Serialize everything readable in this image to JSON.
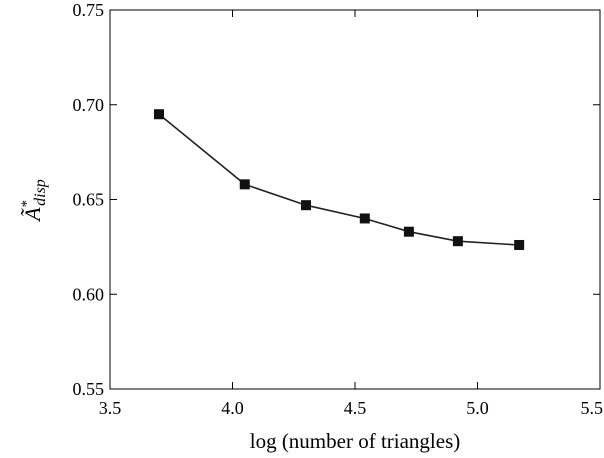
{
  "chart_data": {
    "type": "line",
    "title": "",
    "xlabel": "log (number of triangles)",
    "ylabel": {
      "base": "Ã",
      "superscript": "*",
      "subscript": "disp"
    },
    "xlim": [
      3.5,
      5.5
    ],
    "ylim": [
      0.55,
      0.75
    ],
    "x_ticks": [
      3.5,
      4.0,
      4.5,
      5.0,
      5.5
    ],
    "y_ticks": [
      0.55,
      0.6,
      0.65,
      0.7,
      0.75
    ],
    "x_tick_labels": [
      "3.5",
      "4.0",
      "4.5",
      "5.0",
      "5.5"
    ],
    "y_tick_labels": [
      "0.55",
      "0.60",
      "0.65",
      "0.70",
      "0.75"
    ],
    "grid": false,
    "marker": "square",
    "series": [
      {
        "x": [
          3.7,
          4.05,
          4.3,
          4.54,
          4.72,
          4.92,
          5.17
        ],
        "values": [
          0.695,
          0.658,
          0.647,
          0.64,
          0.633,
          0.628,
          0.626
        ]
      }
    ]
  }
}
